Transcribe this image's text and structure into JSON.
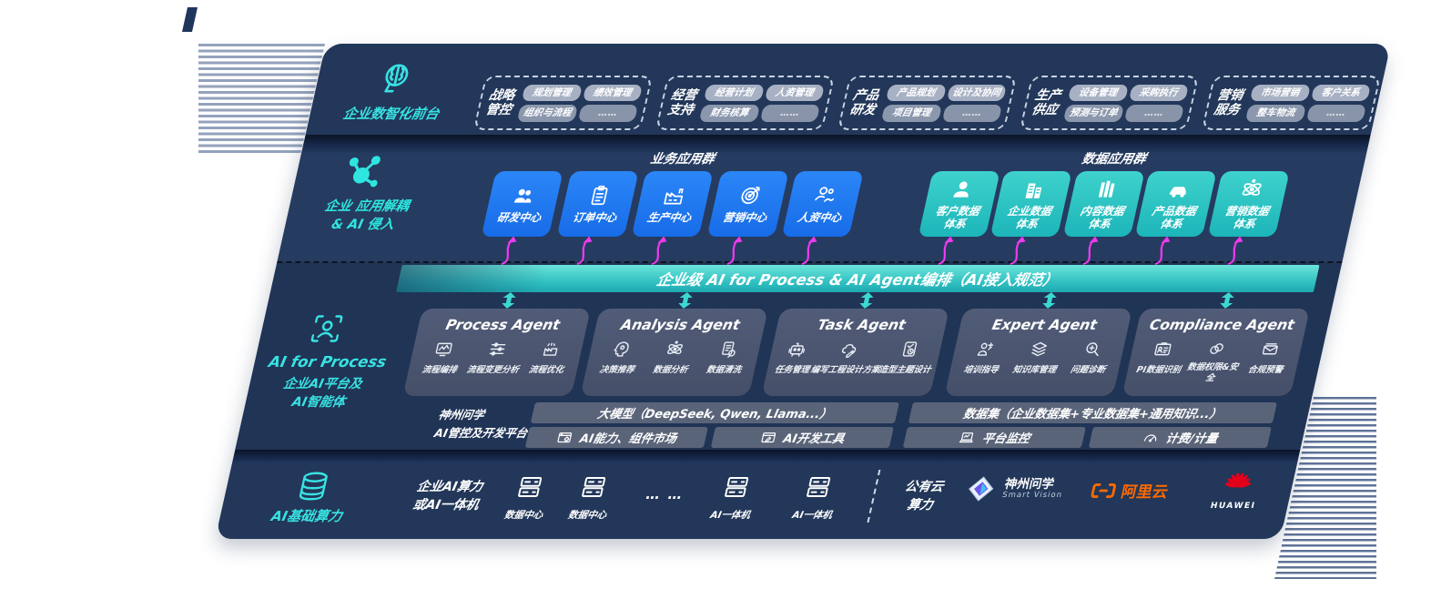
{
  "frontstage": {
    "label": "企业数智化前台",
    "groups": [
      {
        "title": "战略管控",
        "chips": [
          "规划管理",
          "绩效管理",
          "组织与流程",
          "……"
        ]
      },
      {
        "title": "经营支持",
        "chips": [
          "经营计划",
          "人资管理",
          "财务核算",
          "……"
        ]
      },
      {
        "title": "产品研发",
        "chips": [
          "产品规划",
          "设计及协同",
          "项目管理",
          "……"
        ]
      },
      {
        "title": "生产供应",
        "chips": [
          "设备管理",
          "采购执行",
          "预测与订单",
          "……"
        ]
      },
      {
        "title": "营销服务",
        "chips": [
          "市场营销",
          "客户关系",
          "整车物流",
          "……"
        ]
      }
    ]
  },
  "decouple": {
    "label_line1": "企业 应用解耦",
    "label_line2": "& AI 侵入",
    "business_group_label": "业务应用群",
    "business_centers": [
      "研发中心",
      "订单中心",
      "生产中心",
      "营销中心",
      "人资中心"
    ],
    "data_group_label": "数据应用群",
    "data_systems": [
      "客户数据体系",
      "企业数据体系",
      "内容数据体系",
      "产品数据体系",
      "营销数据体系"
    ]
  },
  "orchestration_bar": {
    "label": "企业级 AI for Process & AI Agent编排（AI接入规范）"
  },
  "ai_platform": {
    "label_en": "AI for Process",
    "label_line1": "企业AI平台及",
    "label_line2": "AI智能体",
    "agents": [
      {
        "title": "Process Agent",
        "items": [
          "流程编排",
          "流程变更分析",
          "流程优化"
        ]
      },
      {
        "title": "Analysis Agent",
        "items": [
          "决策推荐",
          "数据分析",
          "数据清洗"
        ]
      },
      {
        "title": "Task Agent",
        "items": [
          "任务管理",
          "编写工程设计方案",
          "造型主题设计"
        ]
      },
      {
        "title": "Expert Agent",
        "items": [
          "培训指导",
          "知识库管理",
          "问题诊断"
        ]
      },
      {
        "title": "Compliance Agent",
        "items": [
          "PI数据识别",
          "数据权限&安全",
          "合规预警"
        ]
      }
    ],
    "platform": {
      "label_line1": "神州问学",
      "label_line2": "AI管控及开发平台",
      "models_bar": "大模型（DeepSeek, Qwen, Llama...）",
      "capability_bar": "AI能力、组件市场",
      "devtools_bar": "AI开发工具",
      "dataset_bar": "数据集（企业数据集+专业数据集+通用知识...）",
      "monitor_bar": "平台监控",
      "billing_bar": "计费/计量"
    }
  },
  "infrastructure": {
    "label": "AI基础算力",
    "enterprise_line1": "企业AI算力",
    "enterprise_line2": "或AI一体机",
    "nodes": [
      {
        "label": "数据中心"
      },
      {
        "label": "数据中心"
      },
      {
        "label": "AI一体机"
      },
      {
        "label": "AI一体机"
      }
    ],
    "ellipsis": "… …",
    "public_cloud_line1": "公有云",
    "public_cloud_line2": "算力",
    "vendors": {
      "smartvision_cn": "神州问学",
      "smartvision_en": "Smart Vision",
      "alicloud": "阿里云",
      "huawei": "HUAWEI"
    }
  },
  "colors": {
    "panel_navy": "#203456",
    "accent_teal": "#38e2e2",
    "box_blue": "#1b76f2",
    "box_teal": "#2cc7c7",
    "magenta": "#ef3af0"
  }
}
